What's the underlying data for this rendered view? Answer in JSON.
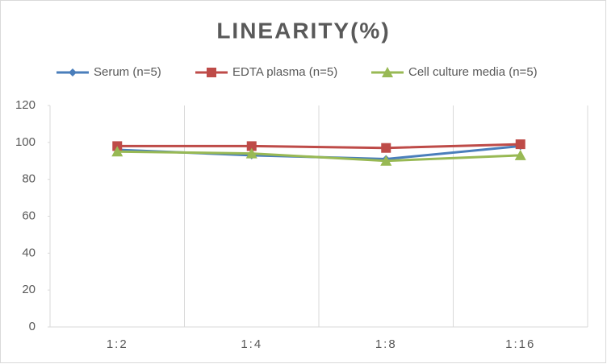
{
  "chart_data": {
    "type": "line",
    "title": "LINEARITY(%)",
    "categories": [
      "1:2",
      "1:4",
      "1:8",
      "1:16"
    ],
    "series": [
      {
        "name": "Serum (n=5)",
        "color": "#4a7ebb",
        "marker": "diamond",
        "values": [
          96,
          93,
          91,
          98
        ]
      },
      {
        "name": "EDTA plasma (n=5)",
        "color": "#be4b48",
        "marker": "square",
        "values": [
          98,
          98,
          97,
          99
        ]
      },
      {
        "name": "Cell culture media (n=5)",
        "color": "#98b954",
        "marker": "triangle",
        "values": [
          95,
          94,
          90,
          93
        ]
      }
    ],
    "ylim": [
      0,
      120
    ],
    "yticks": [
      0,
      20,
      40,
      60,
      80,
      100,
      120
    ],
    "legend": "top"
  }
}
